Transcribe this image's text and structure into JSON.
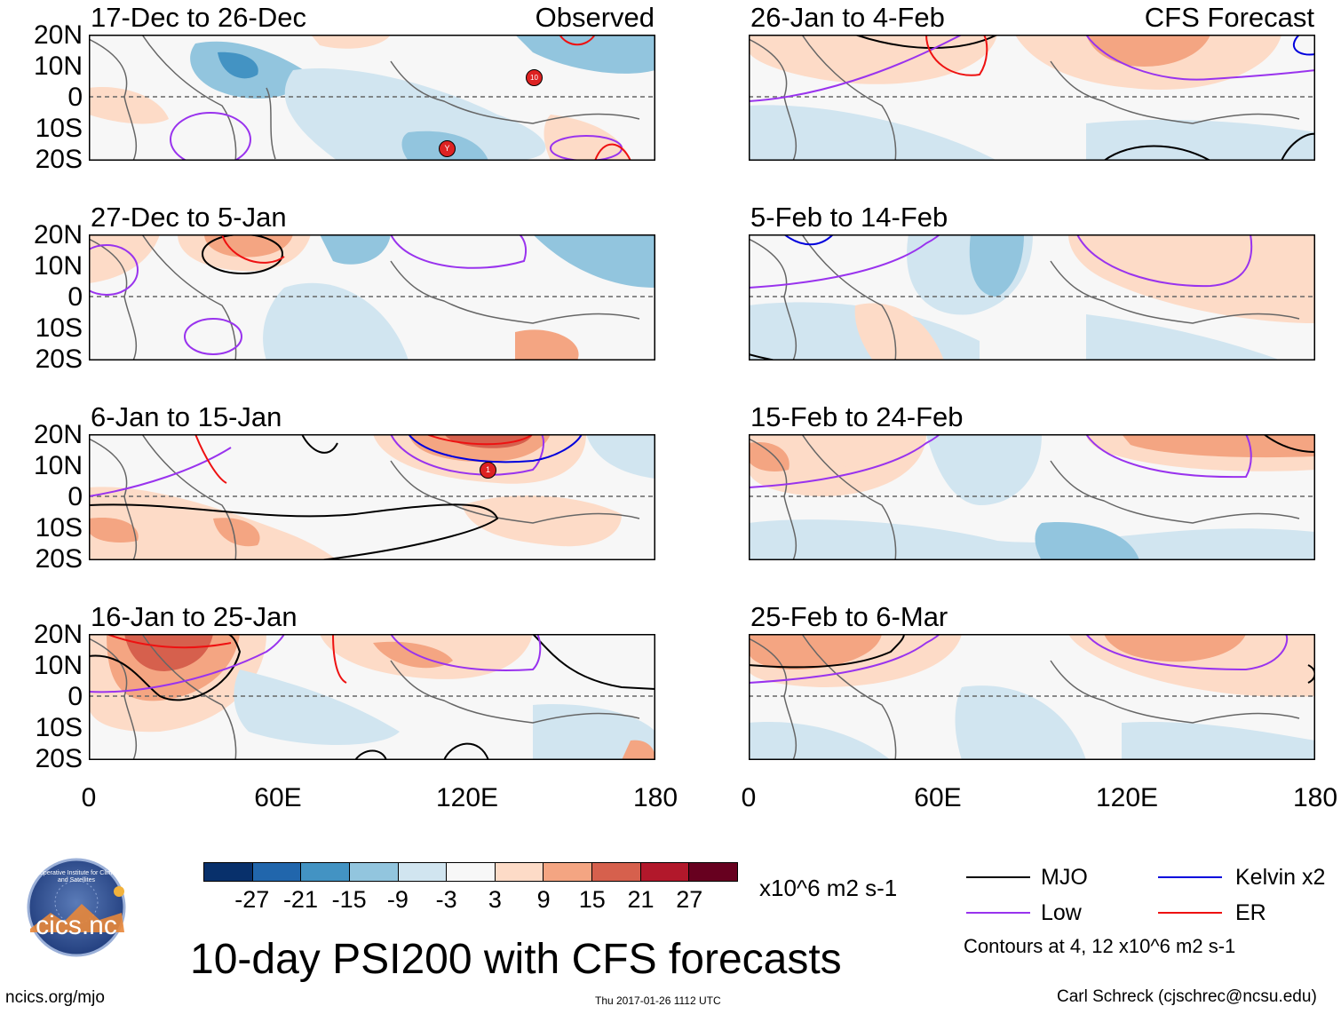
{
  "map_data": {
    "observed_label": "Observed",
    "forecast_label": "CFS Forecast",
    "latitude_ticks": [
      "20N",
      "10N",
      "0",
      "10S",
      "20S"
    ],
    "longitude_ticks": [
      "0",
      "60E",
      "120E",
      "180"
    ],
    "panels": [
      {
        "title": "17-Dec to 26-Dec",
        "source": "Observed"
      },
      {
        "title": "27-Dec to 5-Jan",
        "source": "Observed"
      },
      {
        "title": "6-Jan to 15-Jan",
        "source": "Observed"
      },
      {
        "title": "16-Jan to 25-Jan",
        "source": "Observed"
      },
      {
        "title": "26-Jan to 4-Feb",
        "source": "CFS Forecast"
      },
      {
        "title": "5-Feb to 14-Feb",
        "source": "CFS Forecast"
      },
      {
        "title": "15-Feb to 24-Feb",
        "source": "CFS Forecast"
      },
      {
        "title": "25-Feb to 6-Mar",
        "source": "CFS Forecast"
      }
    ],
    "storm_markers": [
      "10",
      "Y",
      "1"
    ],
    "colorbar": {
      "labels": [
        "-27",
        "-21",
        "-15",
        "-9",
        "-3",
        "3",
        "9",
        "15",
        "21",
        "27"
      ],
      "colors": [
        "#08306b",
        "#2166ac",
        "#4393c3",
        "#92c5de",
        "#d1e5f0",
        "#f7f7f7",
        "#fddbc7",
        "#f4a582",
        "#d6604d",
        "#b2182b",
        "#67001f"
      ],
      "units": "x10^6 m2 s-1"
    },
    "legend": {
      "items": [
        {
          "label": "MJO",
          "color": "#000000"
        },
        {
          "label": "Kelvin x2",
          "color": "#0000dd"
        },
        {
          "label": "Low",
          "color": "#9933ee"
        },
        {
          "label": "ER",
          "color": "#ee1111"
        }
      ],
      "contour_note": "Contours at 4, 12 x10^6 m2 s-1"
    },
    "title": "10-day PSI200 with CFS forecasts",
    "logo_text": "cics.nc",
    "logo_ring_text": "Cooperative Institute for Climate and Satellites",
    "footer_left": "ncics.org/mjo",
    "footer_center": "Thu 2017-01-26 1112 UTC",
    "footer_right": "Carl Schreck (cjschrec@ncsu.edu)"
  }
}
